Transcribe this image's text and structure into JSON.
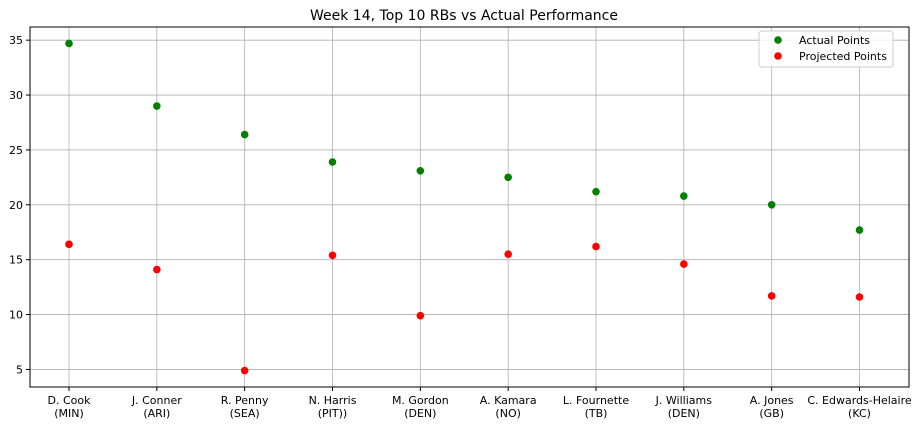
{
  "chart_data": {
    "type": "scatter",
    "title": "Week 14, Top 10 RBs vs Actual Performance",
    "xlabel": "",
    "ylabel": "",
    "categories": [
      [
        "D. Cook",
        "(MIN)"
      ],
      [
        "J. Conner",
        "(ARI)"
      ],
      [
        "R. Penny",
        "(SEA)"
      ],
      [
        "N. Harris",
        "(PIT))"
      ],
      [
        "M. Gordon",
        "(DEN)"
      ],
      [
        "A. Kamara",
        "(NO)"
      ],
      [
        "L. Fournette",
        "(TB)"
      ],
      [
        "J. Williams",
        "(DEN)"
      ],
      [
        "A. Jones",
        "(GB)"
      ],
      [
        "C. Edwards-Helaire",
        "(KC)"
      ]
    ],
    "series": [
      {
        "name": "Actual Points",
        "color": "#008000",
        "values": [
          34.7,
          29.0,
          26.4,
          23.9,
          23.1,
          22.5,
          21.2,
          20.8,
          20.0,
          17.7
        ]
      },
      {
        "name": "Projected Points",
        "color": "#ff0000",
        "values": [
          16.4,
          14.1,
          4.9,
          15.4,
          9.9,
          15.5,
          16.2,
          14.6,
          11.7,
          11.6
        ]
      }
    ],
    "ylim": [
      3.4,
      36.2
    ],
    "yticks": [
      5,
      10,
      15,
      20,
      25,
      30,
      35
    ],
    "grid": true,
    "legend_position": "top-right"
  }
}
